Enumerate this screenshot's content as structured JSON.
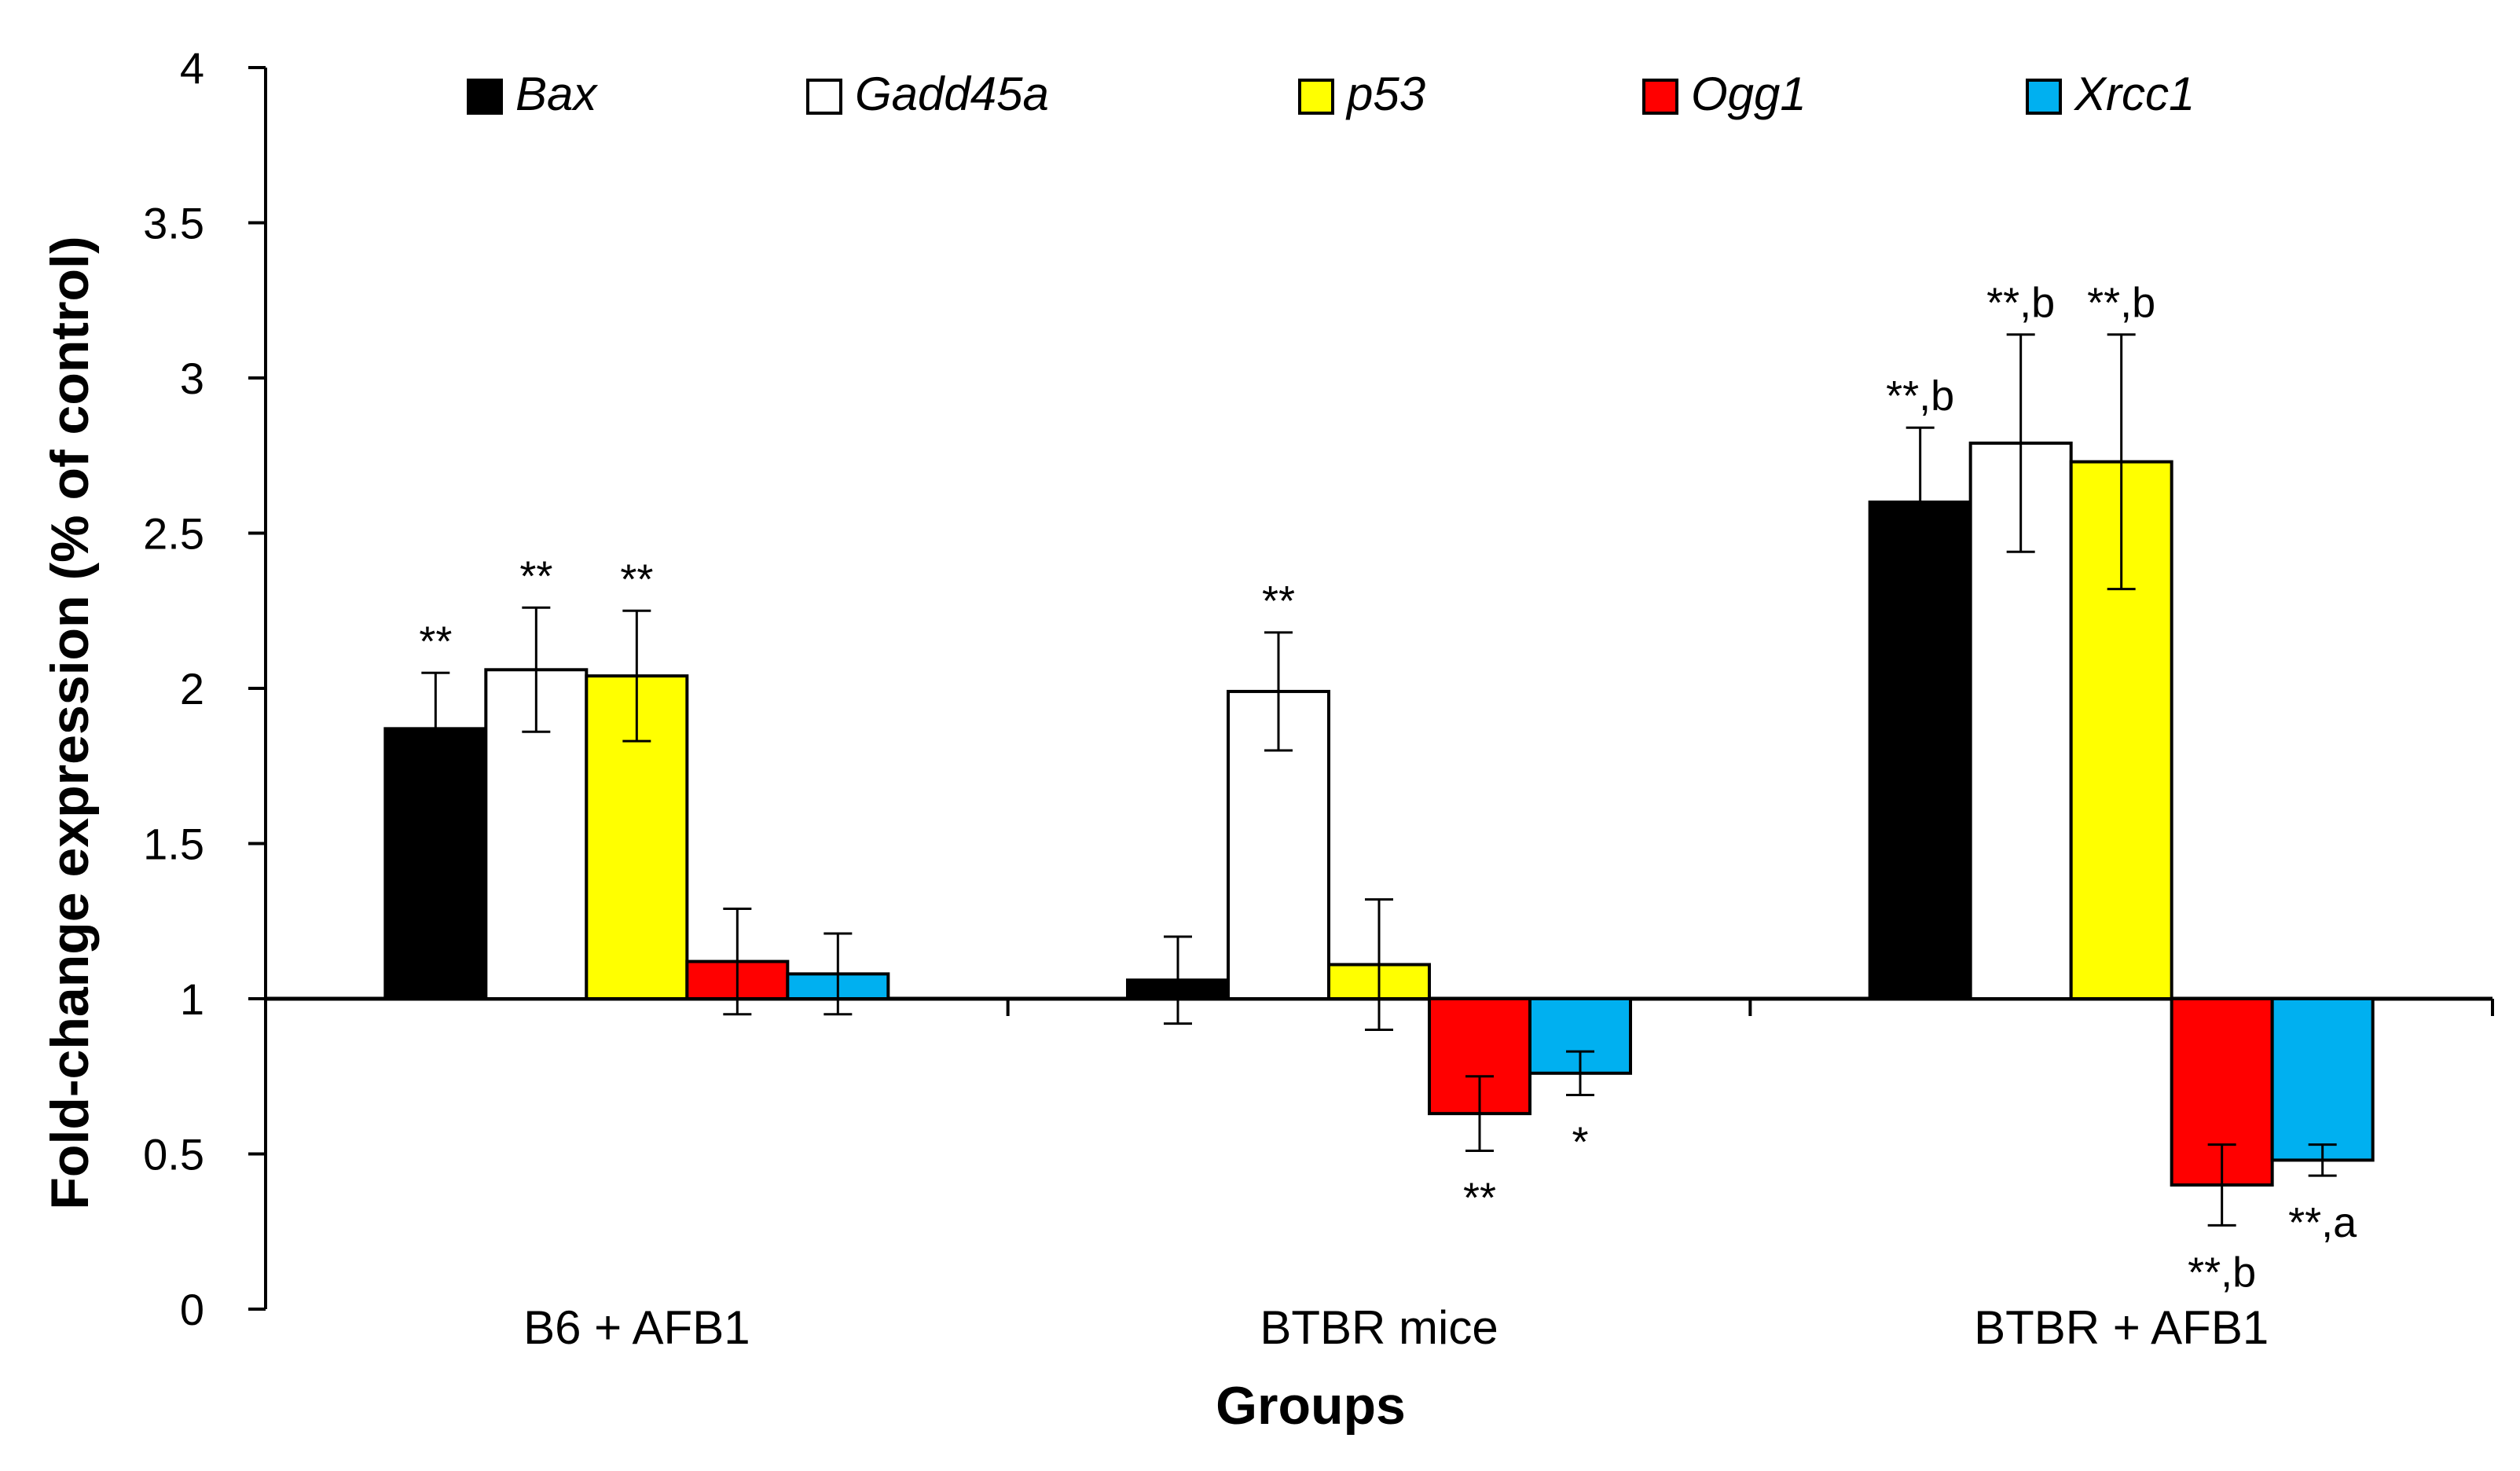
{
  "chart_data": {
    "type": "bar",
    "title": "",
    "xlabel": "Groups",
    "ylabel": "Fold-change expression (% of control)",
    "ylim": [
      0,
      4
    ],
    "yticks": [
      "0",
      "0.5",
      "1",
      "1.5",
      "2",
      "2.5",
      "3",
      "3.5",
      "4"
    ],
    "baseline": 1,
    "legend_position": "top",
    "grid": false,
    "categories": [
      "B6 + AFB1",
      "BTBR mice",
      "BTBR + AFB1"
    ],
    "series": [
      {
        "name": "Bax",
        "color": "#000000",
        "values": [
          1.87,
          1.06,
          2.6
        ],
        "errors": [
          0.18,
          0.14,
          0.24
        ],
        "annotations": [
          "**",
          "",
          "**,b"
        ]
      },
      {
        "name": "Gadd45a",
        "color": "#ffffff",
        "values": [
          2.06,
          1.99,
          2.79
        ],
        "errors": [
          0.2,
          0.19,
          0.35
        ],
        "annotations": [
          "**",
          "**",
          "**,b"
        ]
      },
      {
        "name": "p53",
        "color": "#ffff00",
        "values": [
          2.04,
          1.11,
          2.73
        ],
        "errors": [
          0.21,
          0.21,
          0.41
        ],
        "annotations": [
          "**",
          "",
          "**,b"
        ]
      },
      {
        "name": "Ogg1",
        "color": "#ff0000",
        "values": [
          1.12,
          0.63,
          0.4
        ],
        "errors": [
          0.17,
          0.12,
          0.13
        ],
        "annotations": [
          "",
          "**",
          "**,b"
        ]
      },
      {
        "name": "Xrcc1",
        "color": "#00b0f0",
        "values": [
          1.08,
          0.76,
          0.48
        ],
        "errors": [
          0.13,
          0.07,
          0.05
        ],
        "annotations": [
          "",
          "*",
          "**,a"
        ]
      }
    ]
  }
}
